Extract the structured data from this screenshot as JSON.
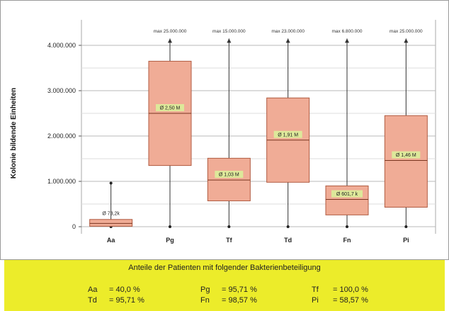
{
  "chart_data": {
    "type": "box",
    "ylabel": "Kolonie bildende Einheiten",
    "ylim": [
      0,
      4200000
    ],
    "yticks": [
      0,
      1000000,
      2000000,
      3000000,
      4000000
    ],
    "ytick_labels": [
      "0",
      "1.000.000",
      "2.000.000",
      "3.000.000",
      "4.000.000"
    ],
    "categories": [
      "Aa",
      "Pg",
      "Tf",
      "Td",
      "Fn",
      "Pi"
    ],
    "boxes": [
      {
        "name": "Aa",
        "min": 0,
        "q1": 10000,
        "median": 73200,
        "q3": 160000,
        "whisker_top": 960000,
        "whisker_arrow": false,
        "max_label": "",
        "median_label": "Ø 73,2k"
      },
      {
        "name": "Pg",
        "min": 0,
        "q1": 1350000,
        "median": 2500000,
        "q3": 3650000,
        "whisker_top": 4150000,
        "whisker_arrow": true,
        "max_label": "max 25.000.000",
        "median_label": "Ø 2,50 M"
      },
      {
        "name": "Tf",
        "min": 0,
        "q1": 570000,
        "median": 1030000,
        "q3": 1510000,
        "whisker_top": 4150000,
        "whisker_arrow": true,
        "max_label": "max 15.000.000",
        "median_label": "Ø 1,03 M"
      },
      {
        "name": "Td",
        "min": 0,
        "q1": 980000,
        "median": 1910000,
        "q3": 2840000,
        "whisker_top": 4150000,
        "whisker_arrow": true,
        "max_label": "max 23.000.000",
        "median_label": "Ø 1,91 M"
      },
      {
        "name": "Fn",
        "min": 0,
        "q1": 260000,
        "median": 601700,
        "q3": 900000,
        "whisker_top": 4150000,
        "whisker_arrow": true,
        "max_label": "max 6.800.000",
        "median_label": "Ø 601,7 k"
      },
      {
        "name": "Pi",
        "min": 0,
        "q1": 430000,
        "median": 1460000,
        "q3": 2450000,
        "whisker_top": 4150000,
        "whisker_arrow": true,
        "max_label": "max 25.000.000",
        "median_label": "Ø 1,46 M"
      }
    ],
    "box_fill": "#f0ac96",
    "box_stroke": "#b05a40",
    "label_fill": "#dde89a",
    "grid": true
  },
  "panel": {
    "title": "Anteile der Patienten mit folgender Bakterienbeteiligung",
    "background": "#ecec2a",
    "shares": [
      {
        "key": "Aa",
        "value": "= 40,0 %"
      },
      {
        "key": "Pg",
        "value": "= 95,71 %"
      },
      {
        "key": "Tf",
        "value": "= 100,0 %"
      },
      {
        "key": "Td",
        "value": "= 95,71 %"
      },
      {
        "key": "Fn",
        "value": "= 98,57 %"
      },
      {
        "key": "Pi",
        "value": "= 58,57 %"
      }
    ]
  }
}
